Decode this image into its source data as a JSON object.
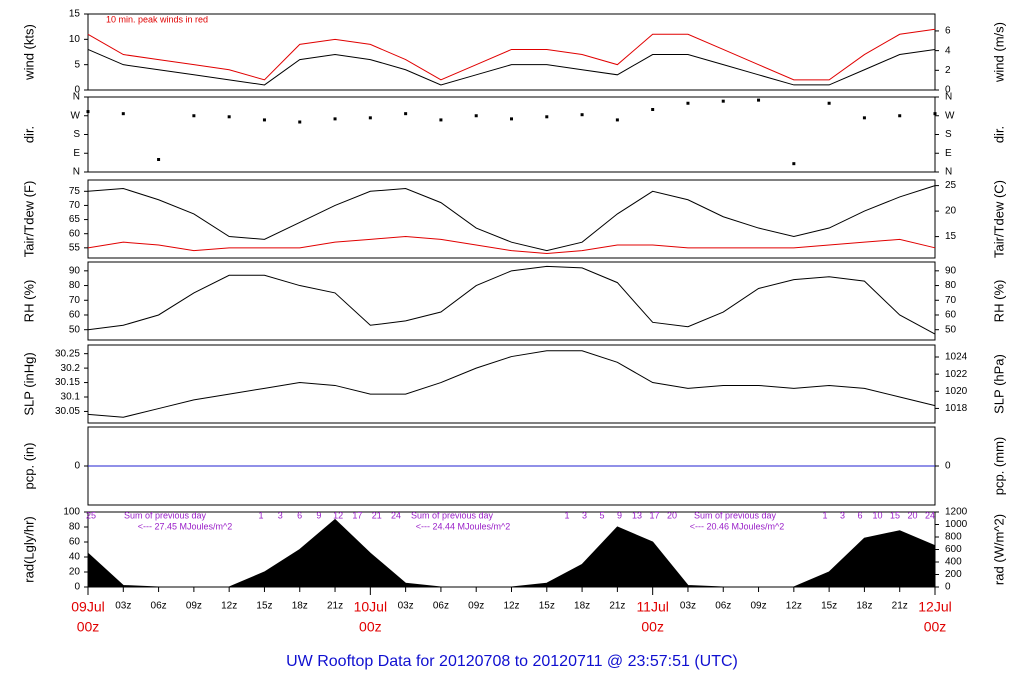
{
  "footer_title": "UW Rooftop Data for 20120708  to  20120711 @ 23:57:51  (UTC)",
  "x_axis": {
    "xlim": [
      0,
      72
    ],
    "x": [
      0,
      3,
      6,
      9,
      12,
      15,
      18,
      21,
      24,
      27,
      30,
      33,
      36,
      39,
      42,
      45,
      48,
      51,
      54,
      57,
      60,
      63,
      66,
      69,
      72
    ],
    "xticks": [
      {
        "value": 3,
        "label": "03z"
      },
      {
        "value": 6,
        "label": "06z"
      },
      {
        "value": 9,
        "label": "09z"
      },
      {
        "value": 12,
        "label": "12z"
      },
      {
        "value": 15,
        "label": "15z"
      },
      {
        "value": 18,
        "label": "18z"
      },
      {
        "value": 21,
        "label": "21z"
      },
      {
        "value": 27,
        "label": "03z"
      },
      {
        "value": 30,
        "label": "06z"
      },
      {
        "value": 33,
        "label": "09z"
      },
      {
        "value": 36,
        "label": "12z"
      },
      {
        "value": 39,
        "label": "15z"
      },
      {
        "value": 42,
        "label": "18z"
      },
      {
        "value": 45,
        "label": "21z"
      },
      {
        "value": 51,
        "label": "03z"
      },
      {
        "value": 54,
        "label": "06z"
      },
      {
        "value": 57,
        "label": "09z"
      },
      {
        "value": 60,
        "label": "12z"
      },
      {
        "value": 63,
        "label": "15z"
      },
      {
        "value": 66,
        "label": "18z"
      },
      {
        "value": 69,
        "label": "21z"
      }
    ],
    "days": [
      {
        "value": 0,
        "label": "09Jul",
        "hour": "00z"
      },
      {
        "value": 24,
        "label": "10Jul",
        "hour": "00z"
      },
      {
        "value": 48,
        "label": "11Jul",
        "hour": "00z"
      },
      {
        "value": 72,
        "label": "12Jul",
        "hour": "00z"
      }
    ]
  },
  "chart_data": [
    {
      "type": "line",
      "ylabel": "wind (kts)",
      "y2label": "wind (m/s)",
      "annotation": "10 min. peak winds in red",
      "ylim": [
        0,
        15
      ],
      "yticks": [
        0,
        5,
        10,
        15
      ],
      "y2lim": [
        0,
        7.72
      ],
      "y2ticks": [
        0,
        2,
        4,
        6
      ],
      "series": [
        {
          "color": "#000000",
          "values": [
            8,
            5,
            4,
            3,
            2,
            1,
            6,
            7,
            6,
            4,
            1,
            3,
            5,
            5,
            4,
            3,
            7,
            7,
            5,
            3,
            1,
            1,
            4,
            7,
            8
          ]
        },
        {
          "color": "#e00000",
          "values": [
            11,
            7,
            6,
            5,
            4,
            2,
            9,
            10,
            9,
            6,
            2,
            5,
            8,
            8,
            7,
            5,
            11,
            11,
            8,
            5,
            2,
            2,
            7,
            11,
            12
          ]
        }
      ]
    },
    {
      "type": "scatter",
      "ylabel": "dir.",
      "y2label": "dir.",
      "ylim": [
        0,
        360
      ],
      "yticks": [
        {
          "value": 0,
          "label": "N"
        },
        {
          "value": 90,
          "label": "E"
        },
        {
          "value": 180,
          "label": "S"
        },
        {
          "value": 270,
          "label": "W"
        },
        {
          "value": 360,
          "label": "N"
        }
      ],
      "y2lim": [
        0,
        360
      ],
      "y2ticks": [
        {
          "value": 0,
          "label": "N"
        },
        {
          "value": 90,
          "label": "E"
        },
        {
          "value": 180,
          "label": "S"
        },
        {
          "value": 270,
          "label": "W"
        },
        {
          "value": 360,
          "label": "N"
        }
      ],
      "series": [
        {
          "color": "#000000",
          "values": [
            290,
            280,
            60,
            270,
            265,
            250,
            240,
            255,
            260,
            280,
            250,
            270,
            255,
            265,
            275,
            250,
            300,
            330,
            340,
            345,
            40,
            330,
            260,
            270,
            280
          ]
        }
      ]
    },
    {
      "type": "line",
      "ylabel": "Tair/Tdew (F)",
      "y2label": "Tair/Tdew (C)",
      "ylim": [
        51.4,
        79
      ],
      "yticks": [
        55,
        60,
        65,
        70,
        75
      ],
      "y2lim": [
        10.8,
        26.1
      ],
      "y2ticks": [
        15,
        20,
        25
      ],
      "series": [
        {
          "color": "#000000",
          "values": [
            75,
            76,
            72,
            67,
            59,
            58,
            64,
            70,
            75,
            76,
            71,
            62,
            57,
            54,
            57,
            67,
            75,
            72,
            66,
            62,
            59,
            62,
            68,
            73,
            77
          ]
        },
        {
          "color": "#e00000",
          "values": [
            55,
            57,
            56,
            54,
            55,
            55,
            55,
            57,
            58,
            59,
            58,
            56,
            54,
            53,
            54,
            56,
            56,
            55,
            55,
            55,
            55,
            56,
            57,
            58,
            55
          ]
        }
      ]
    },
    {
      "type": "line",
      "ylabel": "RH (%)",
      "y2label": "RH (%)",
      "ylim": [
        43,
        96
      ],
      "yticks": [
        50,
        60,
        70,
        80,
        90
      ],
      "y2lim": [
        43,
        96
      ],
      "y2ticks": [
        50,
        60,
        70,
        80,
        90
      ],
      "series": [
        {
          "color": "#000000",
          "values": [
            50,
            53,
            60,
            75,
            87,
            87,
            80,
            75,
            53,
            56,
            62,
            80,
            90,
            93,
            92,
            82,
            55,
            52,
            62,
            78,
            84,
            86,
            83,
            60,
            47
          ]
        }
      ]
    },
    {
      "type": "line",
      "ylabel": "SLP (inHg)",
      "y2label": "SLP (hPa)",
      "ylim": [
        30.01,
        30.28
      ],
      "yticks": [
        30.05,
        30.1,
        30.15,
        30.2,
        30.25
      ],
      "y2lim": [
        1016.3,
        1025.4
      ],
      "y2ticks": [
        1018,
        1020,
        1022,
        1024
      ],
      "series": [
        {
          "color": "#000000",
          "values": [
            30.04,
            30.03,
            30.06,
            30.09,
            30.11,
            30.13,
            30.15,
            30.14,
            30.11,
            30.11,
            30.15,
            30.2,
            30.24,
            30.26,
            30.26,
            30.22,
            30.15,
            30.13,
            30.14,
            30.14,
            30.13,
            30.14,
            30.13,
            30.1,
            30.07
          ]
        }
      ]
    },
    {
      "type": "line",
      "ylabel": "pcp. (in)",
      "y2label": "pcp. (mm)",
      "ylim": [
        -1,
        1
      ],
      "yticks": [
        0
      ],
      "y2lim": [
        -25.4,
        25.4
      ],
      "y2ticks": [
        0
      ],
      "series": [
        {
          "color": "#2020d0",
          "values": [
            0,
            0,
            0,
            0,
            0,
            0,
            0,
            0,
            0,
            0,
            0,
            0,
            0,
            0,
            0,
            0,
            0,
            0,
            0,
            0,
            0,
            0,
            0,
            0,
            0
          ]
        }
      ]
    },
    {
      "type": "area",
      "ylabel": "rad(Lgly/hr)",
      "y2label": "rad (W/m^2)",
      "ylim": [
        0,
        100
      ],
      "yticks": [
        0,
        20,
        40,
        60,
        80,
        100
      ],
      "y2lim": [
        0,
        1200
      ],
      "y2ticks": [
        0,
        200,
        400,
        600,
        800,
        1000,
        1200
      ],
      "series": [
        {
          "color": "#000000",
          "values": [
            45,
            2,
            0,
            0,
            0,
            20,
            50,
            90,
            45,
            5,
            0,
            0,
            0,
            5,
            30,
            80,
            60,
            2,
            0,
            0,
            0,
            20,
            65,
            75,
            55
          ]
        }
      ],
      "hour_labels": [
        [
          "25"
        ],
        [
          "1",
          "3",
          "6",
          "9",
          "12",
          "17",
          "21",
          "24"
        ],
        [
          "1",
          "3",
          "5",
          "9",
          "13",
          "17",
          "20"
        ],
        [
          "1",
          "3",
          "6",
          "10",
          "15",
          "20",
          "24"
        ]
      ],
      "sums": [
        {
          "heading": "Sum of previous day",
          "text": "<--- 27.45 MJoules/m^2"
        },
        {
          "heading": "Sum of previous day",
          "text": "<--- 24.44 MJoules/m^2"
        },
        {
          "heading": "Sum of previous day",
          "text": "<--- 20.46 MJoules/m^2"
        }
      ]
    }
  ]
}
